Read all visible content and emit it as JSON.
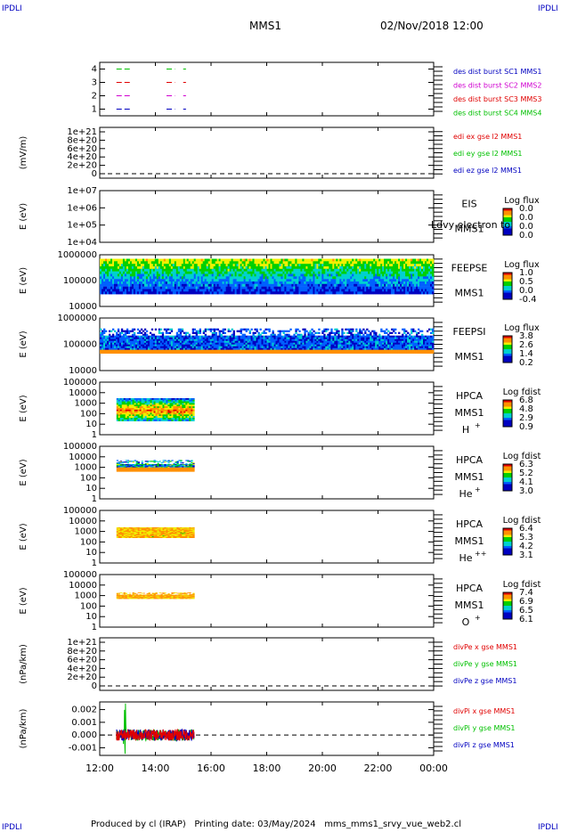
{
  "corner_label": "IPDLI",
  "title": "MMS1",
  "date": "02/Nov/2018 12:00",
  "footer": "Produced by cl (IRAP)   Printing date: 03/May/2024   mms_mms1_srvy_vue_web2.cl",
  "colors": {
    "red": "#e00000",
    "green": "#00c000",
    "blue": "#0000c0",
    "magenta": "#d000d0",
    "orange": "#ff9000",
    "yellow": "#f0f000",
    "cyan": "#00d0d0"
  },
  "time_axis": {
    "ticks": [
      "12:00",
      "14:00",
      "16:00",
      "18:00",
      "20:00",
      "22:00",
      "00:00"
    ],
    "range_hours": [
      12,
      24
    ]
  },
  "chart_data": [
    {
      "type": "line",
      "id": "desdist",
      "yticks": [
        "4",
        "3",
        "2",
        "1"
      ],
      "ylim": [
        0.5,
        4.5
      ],
      "legend": [
        "des dist burst SC1 MMS1",
        "des dist burst SC2 MMS2",
        "des dist burst SC3 MMS3",
        "des dist burst SC4 MMS4"
      ],
      "legend_colors": [
        "blue",
        "magenta",
        "red",
        "green"
      ],
      "series": [
        {
          "name": "des dist burst SC1 MMS1",
          "color": "blue",
          "y": 1,
          "segments": [
            [
              12.6,
              13.1
            ],
            [
              14.4,
              14.7
            ],
            [
              15.0,
              15.1
            ]
          ]
        },
        {
          "name": "des dist burst SC2 MMS2",
          "color": "magenta",
          "y": 2,
          "segments": [
            [
              12.6,
              13.1
            ],
            [
              14.4,
              14.7
            ],
            [
              15.0,
              15.1
            ]
          ]
        },
        {
          "name": "des dist burst SC3 MMS3",
          "color": "red",
          "y": 3,
          "segments": [
            [
              12.6,
              13.1
            ],
            [
              14.4,
              14.7
            ],
            [
              15.0,
              15.1
            ]
          ]
        },
        {
          "name": "des dist burst SC4 MMS4",
          "color": "green",
          "y": 4,
          "segments": [
            [
              12.6,
              13.1
            ],
            [
              14.4,
              14.7
            ],
            [
              15.0,
              15.1
            ]
          ]
        }
      ]
    },
    {
      "type": "line",
      "id": "edi",
      "ylabel": "(mV/m)",
      "yticks": [
        "1e+21",
        "8e+20",
        "6e+20",
        "4e+20",
        "2e+20",
        "0"
      ],
      "ylim": [
        0,
        1e+21
      ],
      "legend": [
        "edi ex gse l2 MMS1",
        "edi ey gse l2 MMS1",
        "edi ez gse l2 MMS1"
      ],
      "legend_colors": [
        "red",
        "green",
        "blue"
      ],
      "zero_line": 0
    },
    {
      "type": "heatmap",
      "id": "eis",
      "ylabel": "E (eV)",
      "log_y": true,
      "yticks": [
        "1e+07",
        "1e+06",
        "1e+05",
        "1e+04"
      ],
      "instrument": [
        "EIS",
        "MMS1"
      ],
      "overlay_text": "Ldvy electron to",
      "colorbar": {
        "title": "Log flux",
        "ticks": [
          "0.0",
          "0.0",
          "0.0",
          "0.0"
        ]
      }
    },
    {
      "type": "heatmap",
      "id": "feepse",
      "ylabel": "E (eV)",
      "log_y": true,
      "yticks": [
        "1000000",
        "100000",
        "10000"
      ],
      "instrument": [
        "FEEPSE",
        "MMS1"
      ],
      "colorbar": {
        "title": "Log flux",
        "ticks": [
          "1.0",
          "0.5",
          "0.0",
          "-0.4"
        ]
      },
      "time_range": [
        12.0,
        24.0
      ],
      "energy_range": [
        30000,
        700000
      ]
    },
    {
      "type": "heatmap",
      "id": "feepsi",
      "ylabel": "E (eV)",
      "log_y": true,
      "yticks": [
        "1000000",
        "100000",
        "10000"
      ],
      "instrument": [
        "FEEPSI",
        "MMS1"
      ],
      "colorbar": {
        "title": "Log flux",
        "ticks": [
          "3.8",
          "2.6",
          "1.4",
          "0.2"
        ]
      },
      "time_range": [
        12.0,
        24.0
      ],
      "energy_range": [
        45000,
        400000
      ]
    },
    {
      "type": "heatmap",
      "id": "hpca_h",
      "ylabel": "E (eV)",
      "log_y": true,
      "yticks": [
        "100000",
        "10000",
        "1000",
        "100",
        "10",
        "1"
      ],
      "instrument": [
        "HPCA",
        "MMS1"
      ],
      "species": "H",
      "species_sup": "+",
      "colorbar": {
        "title": "Log fdist",
        "ticks": [
          "6.8",
          "4.8",
          "2.9",
          "0.9"
        ]
      },
      "time_range": [
        12.6,
        15.4
      ],
      "energy_range": [
        20,
        3000
      ]
    },
    {
      "type": "heatmap",
      "id": "hpca_he",
      "ylabel": "E (eV)",
      "log_y": true,
      "yticks": [
        "100000",
        "10000",
        "1000",
        "100",
        "10",
        "1"
      ],
      "instrument": [
        "HPCA",
        "MMS1"
      ],
      "species": "He",
      "species_sup": "+",
      "colorbar": {
        "title": "Log fdist",
        "ticks": [
          "6.3",
          "5.2",
          "4.1",
          "3.0"
        ]
      },
      "time_range": [
        12.6,
        15.4
      ],
      "energy_range": [
        400,
        5000
      ]
    },
    {
      "type": "heatmap",
      "id": "hpca_hepp",
      "ylabel": "E (eV)",
      "log_y": true,
      "yticks": [
        "100000",
        "10000",
        "1000",
        "100",
        "10",
        "1"
      ],
      "instrument": [
        "HPCA",
        "MMS1"
      ],
      "species": "He",
      "species_sup": "++",
      "colorbar": {
        "title": "Log fdist",
        "ticks": [
          "6.4",
          "5.3",
          "4.2",
          "3.1"
        ]
      },
      "time_range": [
        12.6,
        15.4
      ],
      "energy_range": [
        250,
        2500
      ]
    },
    {
      "type": "heatmap",
      "id": "hpca_o",
      "ylabel": "E (eV)",
      "log_y": true,
      "yticks": [
        "100000",
        "10000",
        "1000",
        "100",
        "10",
        "1"
      ],
      "instrument": [
        "HPCA",
        "MMS1"
      ],
      "species": "O",
      "species_sup": "+",
      "colorbar": {
        "title": "Log fdist",
        "ticks": [
          "7.4",
          "6.9",
          "6.5",
          "6.1"
        ]
      },
      "time_range": [
        12.6,
        15.4
      ],
      "energy_range": [
        500,
        2000
      ]
    },
    {
      "type": "line",
      "id": "divpe",
      "ylabel": "(nPa/km)",
      "yticks": [
        "1e+21",
        "8e+20",
        "6e+20",
        "4e+20",
        "2e+20",
        "0"
      ],
      "ylim": [
        0,
        1e+21
      ],
      "legend": [
        "divPe x gse MMS1",
        "divPe y gse MMS1",
        "divPe z gse MMS1"
      ],
      "legend_colors": [
        "red",
        "green",
        "blue"
      ],
      "zero_line": 0
    },
    {
      "type": "line",
      "id": "divpi",
      "ylabel": "(nPa/km)",
      "yticks": [
        "0.002",
        "0.001",
        "0.000",
        "-0.001"
      ],
      "ylim": [
        -0.0016,
        0.0026
      ],
      "legend": [
        "divPi x gse MMS1",
        "divPi y gse MMS1",
        "divPi z gse MMS1"
      ],
      "legend_colors": [
        "red",
        "green",
        "blue"
      ],
      "zero_line": 0,
      "time_range": [
        12.6,
        15.4
      ]
    }
  ]
}
